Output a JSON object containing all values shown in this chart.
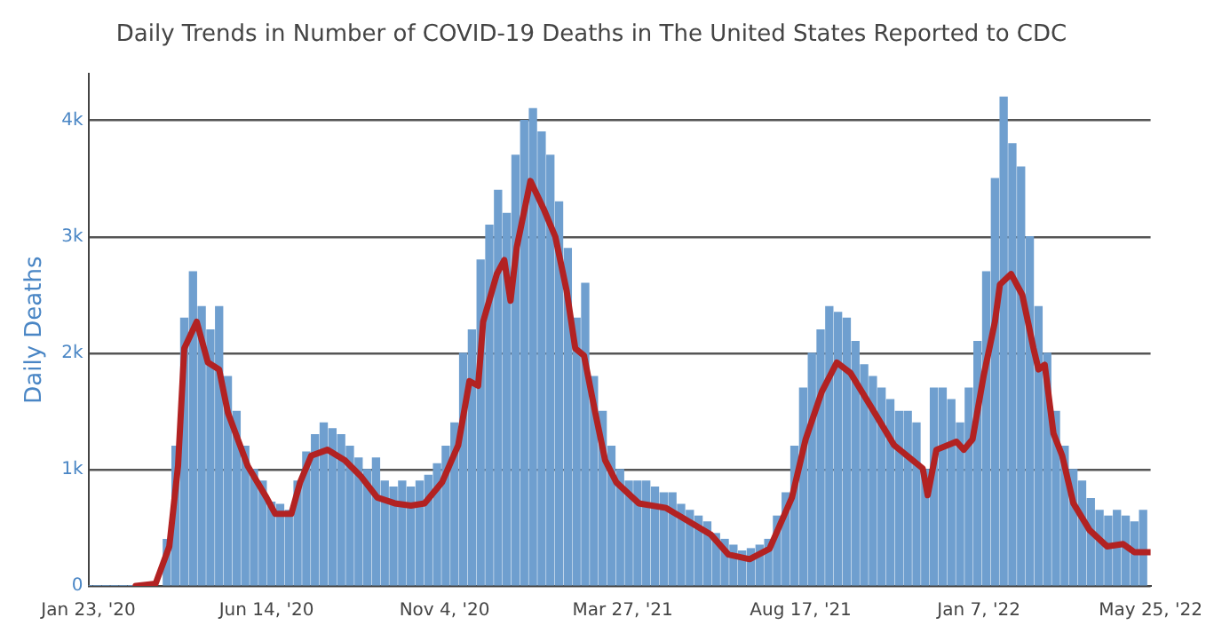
{
  "chart_data": {
    "type": "bar",
    "title": "Daily Trends in Number of COVID-19 Deaths in The United States Reported to CDC",
    "ylabel": "Daily Deaths",
    "xlim": [
      "2020-01-23",
      "2022-05-25"
    ],
    "xticks": [
      {
        "value": "2020-01-23",
        "label": "Jan 23, '20"
      },
      {
        "value": "2020-06-14",
        "label": "Jun 14, '20"
      },
      {
        "value": "2020-11-04",
        "label": "Nov 4, '20"
      },
      {
        "value": "2021-03-27",
        "label": "Mar 27, '21"
      },
      {
        "value": "2021-08-17",
        "label": "Aug 17, '21"
      },
      {
        "value": "2022-01-07",
        "label": "Jan 7, '22"
      },
      {
        "value": "2022-05-25",
        "label": "May 25, '22"
      }
    ],
    "ylim": [
      0,
      4400
    ],
    "yticks": [
      0,
      {
        "value": 1000,
        "label": "1k"
      },
      {
        "value": 2000,
        "label": "2k"
      },
      {
        "value": 3000,
        "label": "3k"
      },
      {
        "value": 4000,
        "label": "4k"
      }
    ],
    "grid": "y",
    "legend": false,
    "series": [
      {
        "color": "#6f9fcf",
        "x": [
          "2020-01-23",
          "2020-01-30",
          "2020-02-06",
          "2020-02-13",
          "2020-02-20",
          "2020-02-27",
          "2020-03-05",
          "2020-03-12",
          "2020-03-19",
          "2020-03-26",
          "2020-04-02",
          "2020-04-09",
          "2020-04-16",
          "2020-04-23",
          "2020-04-30",
          "2020-05-07",
          "2020-05-14",
          "2020-05-21",
          "2020-05-28",
          "2020-06-04",
          "2020-06-11",
          "2020-06-18",
          "2020-06-25",
          "2020-07-02",
          "2020-07-09",
          "2020-07-16",
          "2020-07-23",
          "2020-07-30",
          "2020-08-06",
          "2020-08-13",
          "2020-08-20",
          "2020-08-27",
          "2020-09-03",
          "2020-09-10",
          "2020-09-17",
          "2020-09-24",
          "2020-10-01",
          "2020-10-08",
          "2020-10-15",
          "2020-10-22",
          "2020-10-29",
          "2020-11-05",
          "2020-11-12",
          "2020-11-19",
          "2020-11-26",
          "2020-12-03",
          "2020-12-10",
          "2020-12-17",
          "2020-12-24",
          "2020-12-31",
          "2021-01-07",
          "2021-01-14",
          "2021-01-21",
          "2021-01-28",
          "2021-02-04",
          "2021-02-11",
          "2021-02-18",
          "2021-02-25",
          "2021-03-04",
          "2021-03-11",
          "2021-03-18",
          "2021-03-25",
          "2021-04-01",
          "2021-04-08",
          "2021-04-15",
          "2021-04-22",
          "2021-04-29",
          "2021-05-06",
          "2021-05-13",
          "2021-05-20",
          "2021-05-27",
          "2021-06-03",
          "2021-06-10",
          "2021-06-17",
          "2021-06-24",
          "2021-07-01",
          "2021-07-08",
          "2021-07-15",
          "2021-07-22",
          "2021-07-29",
          "2021-08-05",
          "2021-08-12",
          "2021-08-19",
          "2021-08-26",
          "2021-09-02",
          "2021-09-09",
          "2021-09-16",
          "2021-09-23",
          "2021-09-30",
          "2021-10-07",
          "2021-10-14",
          "2021-10-21",
          "2021-10-28",
          "2021-11-04",
          "2021-11-11",
          "2021-11-18",
          "2021-11-25",
          "2021-12-02",
          "2021-12-09",
          "2021-12-16",
          "2021-12-23",
          "2021-12-30",
          "2022-01-06",
          "2022-01-13",
          "2022-01-20",
          "2022-01-27",
          "2022-02-03",
          "2022-02-10",
          "2022-02-17",
          "2022-02-24",
          "2022-03-03",
          "2022-03-10",
          "2022-03-17",
          "2022-03-24",
          "2022-03-31",
          "2022-04-07",
          "2022-04-14",
          "2022-04-21",
          "2022-04-28",
          "2022-05-05",
          "2022-05-12",
          "2022-05-19"
        ],
        "values": [
          0,
          0,
          0,
          0,
          0,
          0,
          0,
          0,
          null,
          400,
          1200,
          2300,
          2700,
          2400,
          2200,
          2400,
          1800,
          1500,
          1200,
          1000,
          900,
          720,
          700,
          650,
          900,
          1150,
          1300,
          1400,
          1350,
          1300,
          1200,
          1100,
          1000,
          1100,
          900,
          850,
          900,
          850,
          900,
          950,
          1050,
          1200,
          1400,
          2000,
          2200,
          2800,
          3100,
          3400,
          3200,
          3700,
          4000,
          4100,
          3900,
          3700,
          3300,
          2900,
          2300,
          2600,
          1800,
          1500,
          1200,
          1000,
          900,
          900,
          900,
          850,
          800,
          800,
          700,
          650,
          600,
          550,
          450,
          400,
          350,
          300,
          320,
          350,
          400,
          600,
          800,
          1200,
          1700,
          2000,
          2200,
          2400,
          2350,
          2300,
          2100,
          1900,
          1800,
          1700,
          1600,
          1500,
          1500,
          1400,
          1000,
          1700,
          1700,
          1600,
          1400,
          1700,
          2100,
          2700,
          3500,
          4200,
          3800,
          3600,
          3000,
          2400,
          2000,
          1500,
          1200,
          1000,
          900,
          750,
          650,
          600,
          650,
          600,
          550,
          650
        ]
      },
      {
        "type": "line",
        "color": "#b22222",
        "x": [
          "2020-03-01",
          "2020-03-17",
          "2020-03-28",
          "2020-04-04",
          "2020-04-09",
          "2020-04-19",
          "2020-04-28",
          "2020-05-07",
          "2020-05-14",
          "2020-05-30",
          "2020-06-14",
          "2020-06-21",
          "2020-07-04",
          "2020-07-11",
          "2020-07-20",
          "2020-08-02",
          "2020-08-16",
          "2020-08-29",
          "2020-09-11",
          "2020-09-25",
          "2020-10-08",
          "2020-10-19",
          "2020-11-02",
          "2020-11-15",
          "2020-11-24",
          "2020-12-01",
          "2020-12-05",
          "2020-12-16",
          "2020-12-22",
          "2020-12-27",
          "2021-01-01",
          "2021-01-12",
          "2021-01-23",
          "2021-02-01",
          "2021-02-10",
          "2021-02-17",
          "2021-02-24",
          "2021-03-05",
          "2021-03-13",
          "2021-03-22",
          "2021-04-09",
          "2021-05-01",
          "2021-06-06",
          "2021-06-20",
          "2021-07-07",
          "2021-07-23",
          "2021-08-10",
          "2021-08-21",
          "2021-09-03",
          "2021-09-15",
          "2021-09-26",
          "2021-10-13",
          "2021-10-31",
          "2021-11-23",
          "2021-11-27",
          "2021-12-04",
          "2021-12-20",
          "2021-12-26",
          "2022-01-02",
          "2022-01-11",
          "2022-01-20",
          "2022-01-24",
          "2022-02-02",
          "2022-02-11",
          "2022-02-20",
          "2022-02-24",
          "2022-03-01",
          "2022-03-08",
          "2022-03-15",
          "2022-03-24",
          "2022-04-06",
          "2022-04-20",
          "2022-05-03",
          "2022-05-12",
          "2022-05-25"
        ],
        "values": [
          0,
          20,
          340,
          1030,
          2040,
          2270,
          1920,
          1860,
          1490,
          1030,
          760,
          620,
          620,
          890,
          1120,
          1170,
          1080,
          940,
          760,
          710,
          690,
          710,
          890,
          1210,
          1760,
          1720,
          2270,
          2680,
          2800,
          2450,
          2910,
          3480,
          3230,
          3000,
          2540,
          2040,
          1980,
          1490,
          1080,
          890,
          710,
          670,
          440,
          270,
          230,
          320,
          760,
          1260,
          1670,
          1920,
          1830,
          1530,
          1210,
          1010,
          780,
          1170,
          1240,
          1170,
          1260,
          1810,
          2270,
          2590,
          2680,
          2500,
          2040,
          1860,
          1900,
          1310,
          1120,
          710,
          480,
          340,
          360,
          290,
          290
        ]
      }
    ]
  }
}
